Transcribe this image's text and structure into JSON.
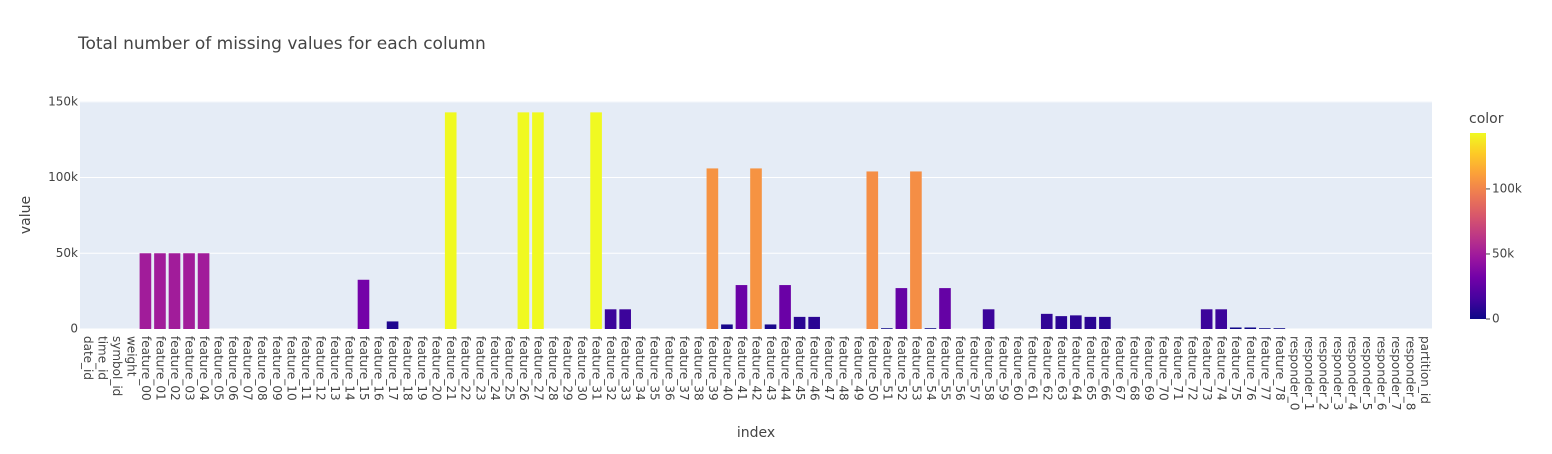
{
  "chart_data": {
    "type": "bar",
    "title": "Total number of missing values for each column",
    "x_label": "index",
    "y_label": "value",
    "categories": [
      "date_id",
      "time_id",
      "symbol_id",
      "weight",
      "feature_00",
      "feature_01",
      "feature_02",
      "feature_03",
      "feature_04",
      "feature_05",
      "feature_06",
      "feature_07",
      "feature_08",
      "feature_09",
      "feature_10",
      "feature_11",
      "feature_12",
      "feature_13",
      "feature_14",
      "feature_15",
      "feature_16",
      "feature_17",
      "feature_18",
      "feature_19",
      "feature_20",
      "feature_21",
      "feature_22",
      "feature_23",
      "feature_24",
      "feature_25",
      "feature_26",
      "feature_27",
      "feature_28",
      "feature_29",
      "feature_30",
      "feature_31",
      "feature_32",
      "feature_33",
      "feature_34",
      "feature_35",
      "feature_36",
      "feature_37",
      "feature_38",
      "feature_39",
      "feature_40",
      "feature_41",
      "feature_42",
      "feature_43",
      "feature_44",
      "feature_45",
      "feature_46",
      "feature_47",
      "feature_48",
      "feature_49",
      "feature_50",
      "feature_51",
      "feature_52",
      "feature_53",
      "feature_54",
      "feature_55",
      "feature_56",
      "feature_57",
      "feature_58",
      "feature_59",
      "feature_60",
      "feature_61",
      "feature_62",
      "feature_63",
      "feature_64",
      "feature_65",
      "feature_66",
      "feature_67",
      "feature_68",
      "feature_69",
      "feature_70",
      "feature_71",
      "feature_72",
      "feature_73",
      "feature_74",
      "feature_75",
      "feature_76",
      "feature_77",
      "feature_78",
      "responder_0",
      "responder_1",
      "responder_2",
      "responder_3",
      "responder_4",
      "responder_5",
      "responder_6",
      "responder_7",
      "responder_8",
      "partition_id"
    ],
    "values": [
      0,
      0,
      0,
      0,
      50000,
      50000,
      50000,
      50000,
      50000,
      0,
      0,
      0,
      0,
      0,
      0,
      0,
      0,
      0,
      0,
      32500,
      0,
      5000,
      0,
      0,
      0,
      143000,
      0,
      0,
      0,
      0,
      143000,
      143000,
      0,
      0,
      0,
      143000,
      13000,
      13000,
      0,
      0,
      0,
      0,
      0,
      106000,
      3000,
      29000,
      106000,
      3000,
      29000,
      8000,
      8000,
      0,
      0,
      0,
      104000,
      500,
      27000,
      104000,
      500,
      27000,
      0,
      0,
      13000,
      0,
      0,
      0,
      10000,
      8500,
      9000,
      8000,
      8000,
      0,
      0,
      0,
      0,
      0,
      0,
      13000,
      13000,
      1000,
      1000,
      500,
      500,
      0,
      0,
      0,
      0,
      0,
      0,
      0,
      0,
      0,
      0
    ],
    "ylim": [
      0,
      150500
    ],
    "yticks": [
      0,
      {
        "value": 50000,
        "label": "50k"
      },
      {
        "value": 100000,
        "label": "100k"
      },
      {
        "value": 150000,
        "label": "150k"
      }
    ],
    "grid": true,
    "colorbar_title": "color",
    "clim": [
      0,
      143000
    ],
    "cticks": [
      0,
      {
        "value": 50000,
        "label": "50k"
      },
      {
        "value": 100000,
        "label": "100k"
      }
    ],
    "colorscale": [
      "#0d0887",
      "#46039f",
      "#7201a8",
      "#9c179e",
      "#bd3786",
      "#d8576b",
      "#ed7953",
      "#fb9f3a",
      "#fdca26",
      "#f0f921"
    ]
  }
}
